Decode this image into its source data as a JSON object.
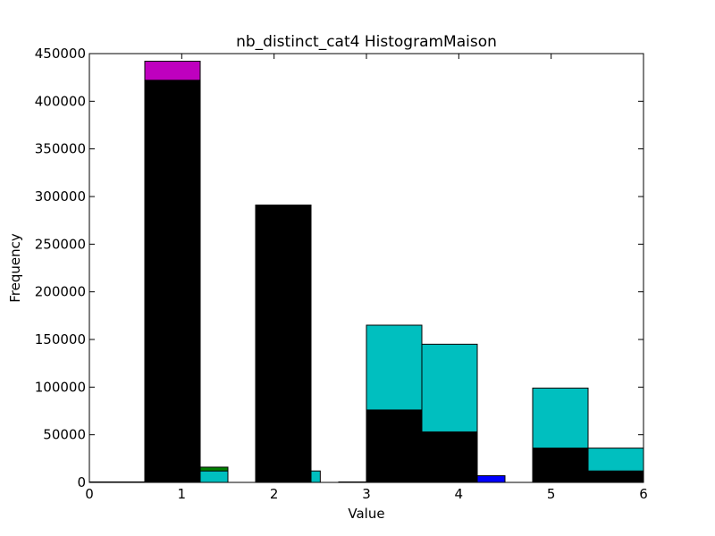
{
  "chart_data": {
    "type": "bar",
    "title": "nb_distinct_cat4 HistogramMaison",
    "xlabel": "Value",
    "ylabel": "Frequency",
    "xlim": [
      0,
      6
    ],
    "ylim": [
      0,
      450000
    ],
    "xticks": [
      "0",
      "1",
      "2",
      "3",
      "4",
      "5",
      "6"
    ],
    "yticks": [
      "0",
      "50000",
      "100000",
      "150000",
      "200000",
      "250000",
      "300000",
      "350000",
      "400000",
      "450000"
    ],
    "grid": false,
    "legend": "none",
    "series": [
      {
        "color": "#bf00bf",
        "bars": [
          {
            "x0": 0.6,
            "x1": 1.2,
            "value": 442000
          },
          {
            "x0": 1.8,
            "x1": 2.4,
            "value": 291000
          }
        ]
      },
      {
        "color": "#008000",
        "bars": [
          {
            "x0": 1.2,
            "x1": 1.5,
            "value": 16000
          }
        ]
      },
      {
        "color": "#0000ff",
        "bars": [
          {
            "x0": 4.2,
            "x1": 4.5,
            "value": 7000
          }
        ]
      },
      {
        "color": "#00bfbf",
        "bars": [
          {
            "x0": 1.2,
            "x1": 1.5,
            "value": 12000
          },
          {
            "x0": 2.4,
            "x1": 2.5,
            "value": 12000
          },
          {
            "x0": 3.0,
            "x1": 3.6,
            "value": 165000
          },
          {
            "x0": 3.6,
            "x1": 4.2,
            "value": 145000
          },
          {
            "x0": 4.8,
            "x1": 5.4,
            "value": 99000
          },
          {
            "x0": 5.4,
            "x1": 6.0,
            "value": 36000
          }
        ]
      },
      {
        "color": "#000000",
        "bars": [
          {
            "x0": 0.0,
            "x1": 0.6,
            "value": 500
          },
          {
            "x0": 0.6,
            "x1": 1.2,
            "value": 422000
          },
          {
            "x0": 1.8,
            "x1": 2.4,
            "value": 291000
          },
          {
            "x0": 2.7,
            "x1": 3.0,
            "value": 500
          },
          {
            "x0": 3.0,
            "x1": 3.6,
            "value": 76000
          },
          {
            "x0": 3.6,
            "x1": 4.2,
            "value": 53000
          },
          {
            "x0": 4.8,
            "x1": 5.4,
            "value": 36000
          },
          {
            "x0": 5.4,
            "x1": 6.0,
            "value": 12000
          }
        ]
      }
    ]
  }
}
